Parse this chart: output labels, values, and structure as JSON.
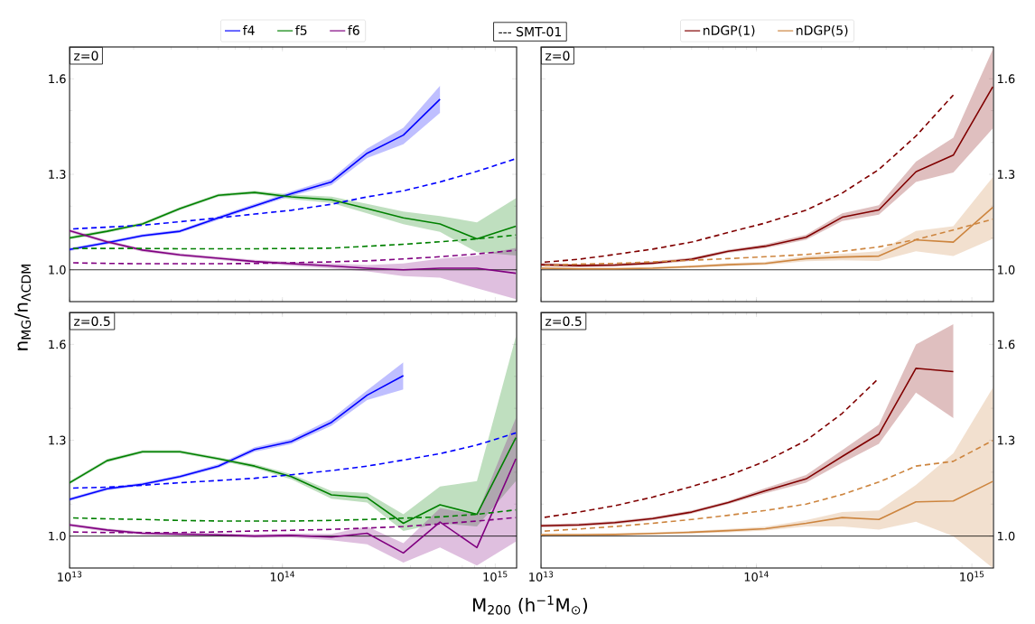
{
  "chart_data": [
    {
      "type": "line",
      "line_style": "solid",
      "log": "x",
      "xlim": [
        10000000000000.0,
        1260000000000000.0
      ],
      "ylim": [
        0.9,
        1.7
      ],
      "legend": "top",
      "tick_labels": "y",
      "xticks": [
        {
          "value": 10000000000000.0,
          "label": null
        },
        {
          "value": 100000000000000.0,
          "label": null
        },
        {
          "value": 1000000000000000.0,
          "label": null
        }
      ],
      "yticks": [
        {
          "value": 1.0,
          "label": "1.0"
        },
        {
          "value": 1.3,
          "label": "1.3"
        },
        {
          "value": 1.6,
          "label": "1.6"
        }
      ],
      "annotations": [
        "z=0",
        "--- SMT-01"
      ],
      "ref_lines": [
        {
          "axis": "y",
          "value": 1.0
        }
      ],
      "x": [
        10000000000000.0,
        15000000000000.0,
        22000000000000.0,
        33000000000000.0,
        50000000000000.0,
        74000000000000.0,
        110000000000000.0,
        170000000000000.0,
        250000000000000.0,
        370000000000000.0,
        550000000000000.0,
        820000000000000.0,
        1250000000000000.0
      ],
      "series": [
        {
          "name": "f4",
          "color": "#0000ff",
          "values": [
            1.064,
            1.085,
            1.107,
            1.121,
            1.163,
            1.201,
            1.239,
            1.276,
            1.366,
            1.423,
            1.536,
            null,
            null
          ],
          "lower": [
            1.059,
            1.08,
            1.102,
            1.116,
            1.157,
            1.195,
            1.232,
            1.266,
            1.351,
            1.394,
            1.493,
            null,
            null
          ],
          "upper": [
            1.069,
            1.09,
            1.112,
            1.126,
            1.169,
            1.207,
            1.246,
            1.286,
            1.381,
            1.446,
            1.578,
            null,
            null
          ]
        },
        {
          "name": "f5",
          "color": "#008000",
          "values": [
            1.1,
            1.121,
            1.144,
            1.192,
            1.234,
            1.243,
            1.229,
            1.22,
            1.192,
            1.163,
            1.144,
            1.097,
            1.137
          ],
          "lower": [
            1.095,
            1.116,
            1.139,
            1.187,
            1.229,
            1.238,
            1.222,
            1.21,
            1.177,
            1.143,
            1.119,
            1.055,
            1.045
          ],
          "upper": [
            1.105,
            1.126,
            1.149,
            1.197,
            1.239,
            1.248,
            1.236,
            1.23,
            1.207,
            1.183,
            1.169,
            1.149,
            1.225
          ]
        },
        {
          "name": "f6",
          "color": "#800080",
          "values": [
            1.123,
            1.088,
            1.062,
            1.047,
            1.036,
            1.026,
            1.019,
            1.012,
            1.005,
            1.0,
            1.005,
            1.005,
            0.989
          ],
          "lower": [
            1.118,
            1.083,
            1.057,
            1.042,
            1.031,
            1.021,
            1.013,
            1.004,
            0.995,
            0.98,
            0.975,
            0.942,
            0.908
          ],
          "upper": [
            1.128,
            1.093,
            1.067,
            1.052,
            1.041,
            1.031,
            1.025,
            1.02,
            1.015,
            1.02,
            1.035,
            1.045,
            1.069
          ]
        },
        {
          "color": "#0000ff",
          "line_style": "dashed",
          "values": [
            1.128,
            1.134,
            1.14,
            1.151,
            1.163,
            1.175,
            1.187,
            1.206,
            1.229,
            1.248,
            1.276,
            1.309,
            1.349
          ]
        },
        {
          "color": "#008000",
          "line_style": "dashed",
          "values": [
            1.067,
            1.067,
            1.067,
            1.066,
            1.066,
            1.066,
            1.067,
            1.068,
            1.074,
            1.08,
            1.088,
            1.097,
            1.109
          ]
        },
        {
          "color": "#800080",
          "line_style": "dashed",
          "values": [
            1.022,
            1.02,
            1.019,
            1.019,
            1.019,
            1.02,
            1.022,
            1.025,
            1.028,
            1.034,
            1.041,
            1.05,
            1.061
          ]
        }
      ]
    },
    {
      "type": "line",
      "line_style": "solid",
      "log": "x",
      "xlim": [
        10000000000000.0,
        1260000000000000.0
      ],
      "ylim": [
        0.9,
        1.7
      ],
      "legend": "top",
      "tick_labels": "y",
      "xticks": [
        {
          "value": 10000000000000.0,
          "label": null
        },
        {
          "value": 100000000000000.0,
          "label": null
        },
        {
          "value": 1000000000000000.0,
          "label": null
        }
      ],
      "yticks": [
        {
          "value": 1.0,
          "label": "1.0"
        },
        {
          "value": 1.3,
          "label": "1.3"
        },
        {
          "value": 1.6,
          "label": "1.6"
        }
      ],
      "annotations": [
        "z=0"
      ],
      "ref_lines": [
        {
          "axis": "y",
          "value": 1.0
        }
      ],
      "x": [
        10000000000000.0,
        15000000000000.0,
        22000000000000.0,
        33000000000000.0,
        50000000000000.0,
        74000000000000.0,
        110000000000000.0,
        170000000000000.0,
        250000000000000.0,
        370000000000000.0,
        550000000000000.0,
        820000000000000.0,
        1250000000000000.0
      ],
      "series": [
        {
          "name": "nDGP(1)",
          "color": "#800000",
          "values": [
            1.016,
            1.013,
            1.015,
            1.021,
            1.033,
            1.058,
            1.074,
            1.102,
            1.165,
            1.188,
            1.308,
            1.36,
            1.575
          ],
          "lower": [
            1.011,
            1.008,
            1.01,
            1.016,
            1.028,
            1.053,
            1.068,
            1.094,
            1.153,
            1.173,
            1.276,
            1.306,
            1.444
          ],
          "upper": [
            1.021,
            1.018,
            1.02,
            1.026,
            1.038,
            1.063,
            1.08,
            1.11,
            1.177,
            1.203,
            1.34,
            1.415,
            1.692
          ]
        },
        {
          "name": "nDGP(5)",
          "color": "#cd853f",
          "values": [
            1.005,
            1.003,
            1.003,
            1.005,
            1.01,
            1.016,
            1.02,
            1.035,
            1.04,
            1.043,
            1.094,
            1.087,
            1.196
          ],
          "lower": [
            1.001,
            0.999,
            0.999,
            1.001,
            1.006,
            1.011,
            1.015,
            1.027,
            1.03,
            1.028,
            1.058,
            1.043,
            1.097
          ],
          "upper": [
            1.009,
            1.007,
            1.007,
            1.009,
            1.014,
            1.021,
            1.025,
            1.043,
            1.05,
            1.058,
            1.122,
            1.137,
            1.291
          ]
        },
        {
          "color": "#800000",
          "line_style": "dashed",
          "values": [
            1.023,
            1.033,
            1.048,
            1.065,
            1.087,
            1.117,
            1.147,
            1.187,
            1.241,
            1.315,
            1.42,
            1.549,
            null
          ]
        },
        {
          "color": "#cd853f",
          "line_style": "dashed",
          "values": [
            1.013,
            1.018,
            1.02,
            1.025,
            1.03,
            1.035,
            1.041,
            1.048,
            1.058,
            1.072,
            1.095,
            1.125,
            1.159
          ]
        }
      ]
    },
    {
      "type": "line",
      "line_style": "solid",
      "log": "x",
      "xlim": [
        10000000000000.0,
        1260000000000000.0
      ],
      "ylim": [
        0.9,
        1.7
      ],
      "xlabel": "M$_{200}$ (h$^{−1}$M$_{⊙}$)",
      "ylabel": "n$_{MG}$/n$_{ΛCDM}$",
      "xticks": [
        {
          "value": 10000000000000.0,
          "label": "10$^{13}$"
        },
        {
          "value": 100000000000000.0,
          "label": "10$^{14}$"
        },
        {
          "value": 1000000000000000.0,
          "label": "10$^{15}$"
        }
      ],
      "yticks": [
        {
          "value": 1.0,
          "label": "1.0"
        },
        {
          "value": 1.3,
          "label": "1.3"
        },
        {
          "value": 1.6,
          "label": "1.6"
        }
      ],
      "annotations": [
        "z=0.5"
      ],
      "ref_lines": [
        {
          "axis": "y",
          "value": 1.0
        }
      ],
      "x": [
        10000000000000.0,
        15000000000000.0,
        22000000000000.0,
        33000000000000.0,
        50000000000000.0,
        74000000000000.0,
        110000000000000.0,
        170000000000000.0,
        250000000000000.0,
        370000000000000.0,
        550000000000000.0,
        820000000000000.0,
        1250000000000000.0
      ],
      "series": [
        {
          "color": "#0000ff",
          "values": [
            1.115,
            1.148,
            1.162,
            1.186,
            1.219,
            1.271,
            1.296,
            1.356,
            1.441,
            1.502,
            null,
            null,
            null
          ],
          "lower": [
            1.11,
            1.143,
            1.157,
            1.181,
            1.213,
            1.264,
            1.288,
            1.345,
            1.426,
            1.459,
            null,
            null,
            null
          ],
          "upper": [
            1.12,
            1.153,
            1.167,
            1.191,
            1.225,
            1.278,
            1.304,
            1.367,
            1.456,
            1.544,
            null,
            null,
            null
          ]
        },
        {
          "color": "#008000",
          "values": [
            1.167,
            1.236,
            1.264,
            1.264,
            1.242,
            1.219,
            1.186,
            1.129,
            1.12,
            1.04,
            1.098,
            1.068,
            1.308
          ],
          "lower": [
            1.162,
            1.231,
            1.259,
            1.259,
            1.237,
            1.213,
            1.178,
            1.117,
            1.105,
            1.016,
            1.04,
            1.03,
            1.172
          ],
          "upper": [
            1.172,
            1.241,
            1.269,
            1.269,
            1.247,
            1.225,
            1.194,
            1.141,
            1.135,
            1.068,
            1.155,
            1.172,
            1.625
          ]
        },
        {
          "color": "#800080",
          "values": [
            1.035,
            1.019,
            1.009,
            1.006,
            1.004,
            1.0,
            1.002,
            0.997,
            1.009,
            0.947,
            1.044,
            0.964,
            1.242
          ],
          "lower": [
            1.03,
            1.014,
            1.004,
            1.001,
            0.999,
            0.995,
            0.996,
            0.987,
            0.974,
            0.917,
            0.964,
            0.908,
            0.983
          ],
          "upper": [
            1.04,
            1.024,
            1.014,
            1.011,
            1.009,
            1.005,
            1.008,
            1.007,
            1.03,
            0.978,
            1.087,
            1.068,
            1.37
          ]
        },
        {
          "color": "#0000ff",
          "line_style": "dashed",
          "values": [
            1.15,
            1.153,
            1.159,
            1.167,
            1.174,
            1.181,
            1.192,
            1.205,
            1.219,
            1.238,
            1.258,
            1.285,
            1.323
          ]
        },
        {
          "color": "#008000",
          "line_style": "dashed",
          "values": [
            1.057,
            1.054,
            1.052,
            1.049,
            1.047,
            1.047,
            1.047,
            1.049,
            1.052,
            1.056,
            1.06,
            1.068,
            1.082
          ]
        },
        {
          "color": "#800080",
          "line_style": "dashed",
          "values": [
            1.013,
            1.011,
            1.011,
            1.011,
            1.013,
            1.016,
            1.018,
            1.021,
            1.025,
            1.03,
            1.038,
            1.047,
            1.058
          ]
        }
      ]
    },
    {
      "type": "line",
      "line_style": "solid",
      "log": "x",
      "xlim": [
        10000000000000.0,
        1260000000000000.0
      ],
      "ylim": [
        0.9,
        1.7
      ],
      "xticks": [
        {
          "value": 10000000000000.0,
          "label": "10$^{13}$"
        },
        {
          "value": 100000000000000.0,
          "label": "10$^{14}$"
        },
        {
          "value": 1000000000000000.0,
          "label": "10$^{15}$"
        }
      ],
      "yticks": [
        {
          "value": 1.0,
          "label": "1.0"
        },
        {
          "value": 1.3,
          "label": "1.3"
        },
        {
          "value": 1.6,
          "label": "1.6"
        }
      ],
      "annotations": [
        "z=0.5"
      ],
      "ref_lines": [
        {
          "axis": "y",
          "value": 1.0
        }
      ],
      "x": [
        10000000000000.0,
        15000000000000.0,
        22000000000000.0,
        33000000000000.0,
        50000000000000.0,
        74000000000000.0,
        110000000000000.0,
        170000000000000.0,
        250000000000000.0,
        370000000000000.0,
        550000000000000.0,
        820000000000000.0,
        1250000000000000.0
      ],
      "series": [
        {
          "color": "#800000",
          "values": [
            1.032,
            1.035,
            1.042,
            1.055,
            1.075,
            1.105,
            1.142,
            1.179,
            1.249,
            1.319,
            1.525,
            1.515,
            null
          ],
          "lower": [
            1.027,
            1.03,
            1.037,
            1.05,
            1.07,
            1.1,
            1.134,
            1.167,
            1.229,
            1.289,
            1.449,
            1.369,
            null
          ],
          "upper": [
            1.037,
            1.04,
            1.047,
            1.06,
            1.08,
            1.11,
            1.15,
            1.191,
            1.269,
            1.349,
            1.6,
            1.663,
            null
          ]
        },
        {
          "color": "#cd853f",
          "values": [
            1.004,
            1.004,
            1.005,
            1.008,
            1.012,
            1.017,
            1.023,
            1.04,
            1.058,
            1.052,
            1.107,
            1.11,
            1.171
          ],
          "lower": [
            1.0,
            1.0,
            1.001,
            1.004,
            1.008,
            1.012,
            1.017,
            1.03,
            1.03,
            1.02,
            1.045,
            1.0,
            0.9
          ],
          "upper": [
            1.008,
            1.008,
            1.009,
            1.012,
            1.016,
            1.022,
            1.029,
            1.05,
            1.075,
            1.08,
            1.16,
            1.259,
            1.464
          ]
        },
        {
          "color": "#800000",
          "line_style": "dashed",
          "values": [
            1.057,
            1.075,
            1.095,
            1.122,
            1.155,
            1.189,
            1.234,
            1.299,
            1.384,
            1.494,
            null,
            null,
            null
          ]
        },
        {
          "color": "#cd853f",
          "line_style": "dashed",
          "values": [
            1.015,
            1.022,
            1.03,
            1.04,
            1.052,
            1.065,
            1.08,
            1.1,
            1.13,
            1.169,
            1.219,
            1.234,
            1.299
          ]
        }
      ]
    }
  ]
}
